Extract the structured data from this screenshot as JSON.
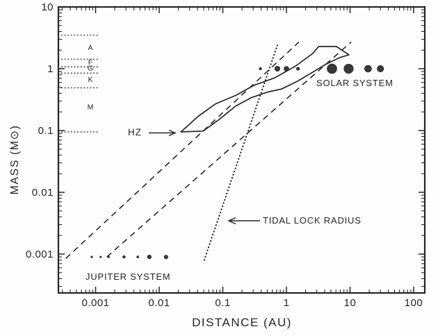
{
  "chart_data": {
    "type": "scatter",
    "title": "",
    "xlabel": "DISTANCE (AU)",
    "ylabel": "MASS (M⊙)",
    "x_scale": "log",
    "y_scale": "log",
    "x_range": [
      0.00026,
      150
    ],
    "y_range": [
      0.00024,
      10.3
    ],
    "grid": false,
    "x_ticks": [
      {
        "value": 0.001,
        "label": "0.001"
      },
      {
        "value": 0.01,
        "label": "0.01"
      },
      {
        "value": 0.1,
        "label": "0.1"
      },
      {
        "value": 1,
        "label": "1"
      },
      {
        "value": 10,
        "label": "10"
      },
      {
        "value": 100,
        "label": "100"
      }
    ],
    "y_ticks": [
      {
        "value": 10,
        "label": "10"
      },
      {
        "value": 1,
        "label": "1"
      },
      {
        "value": 0.1,
        "label": "0.1"
      },
      {
        "value": 0.01,
        "label": "0.01"
      },
      {
        "value": 0.001,
        "label": "0.001"
      }
    ],
    "spectral_classes": {
      "separator_masses": [
        3.5,
        1.43,
        1.07,
        0.85,
        0.49,
        0.095
      ],
      "labels": [
        {
          "text": "A",
          "mass": 2.2
        },
        {
          "text": "F",
          "mass": 1.28
        },
        {
          "text": "G",
          "mass": 1.02
        },
        {
          "text": "K",
          "mass": 0.67
        },
        {
          "text": "M",
          "mass": 0.24
        }
      ]
    },
    "hz_band": [
      [
        0.022,
        0.095
      ],
      [
        0.041,
        0.17
      ],
      [
        0.077,
        0.27
      ],
      [
        0.16,
        0.37
      ],
      [
        0.31,
        0.54
      ],
      [
        0.65,
        0.71
      ],
      [
        1.4,
        1.11
      ],
      [
        2.6,
        1.77
      ],
      [
        3.2,
        2.29
      ],
      [
        6.1,
        2.29
      ],
      [
        9.6,
        1.68
      ],
      [
        6.8,
        1.51
      ],
      [
        4.1,
        1.17
      ],
      [
        2.5,
        0.86
      ],
      [
        1.5,
        0.63
      ],
      [
        0.84,
        0.47
      ],
      [
        0.51,
        0.42
      ],
      [
        0.28,
        0.34
      ],
      [
        0.16,
        0.25
      ],
      [
        0.087,
        0.15
      ],
      [
        0.049,
        0.098
      ]
    ],
    "dashed_lines": [
      {
        "from": [
          0.00034,
          0.00085
        ],
        "to": [
          1.57,
          2.7
        ]
      },
      {
        "from": [
          0.0015,
          0.0009
        ],
        "to": [
          10.4,
          2.7
        ]
      }
    ],
    "tidal_lock_line": {
      "from": [
        0.051,
        0.0008
      ],
      "to": [
        0.72,
        2.4
      ]
    },
    "solar_system": {
      "label": "SOLAR SYSTEM",
      "mass": 1.0,
      "points": [
        {
          "d": 0.39,
          "r": 1.8
        },
        {
          "d": 0.72,
          "r": 3.7
        },
        {
          "d": 1.0,
          "r": 3.5
        },
        {
          "d": 1.52,
          "r": 2.3
        },
        {
          "d": 5.2,
          "r": 7.0
        },
        {
          "d": 9.5,
          "r": 6.7
        },
        {
          "d": 19.2,
          "r": 5.0
        },
        {
          "d": 30.0,
          "r": 4.7
        }
      ]
    },
    "jupiter_system": {
      "label": "JUPITER SYSTEM",
      "mass": 0.0009,
      "points": [
        {
          "d": 0.00087,
          "r": 1.3
        },
        {
          "d": 0.0012,
          "r": 1.2
        },
        {
          "d": 0.0016,
          "r": 1.3
        },
        {
          "d": 0.0028,
          "r": 1.9
        },
        {
          "d": 0.0046,
          "r": 1.5
        },
        {
          "d": 0.007,
          "r": 2.8
        },
        {
          "d": 0.0128,
          "r": 2.7
        }
      ]
    },
    "annotations": {
      "hz_label": "HZ",
      "tidal_lock_label": "TIDAL LOCK RADIUS"
    },
    "colors": {
      "ink": "#242424",
      "dot_fill": "#383838",
      "background": "#fefefe"
    }
  }
}
